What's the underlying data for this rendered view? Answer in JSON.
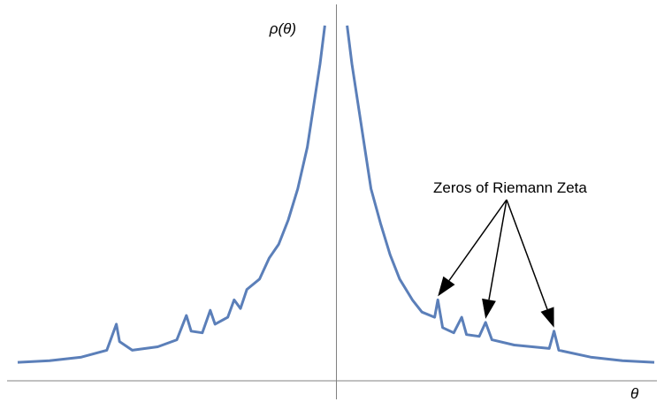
{
  "chart_data": {
    "type": "line",
    "title": "",
    "xlabel": "θ",
    "ylabel": "ρ(θ)",
    "grid": false,
    "xlim": [
      -1,
      1
    ],
    "ylim": [
      0,
      1
    ],
    "series": [
      {
        "points_left": [
          [
            -1.0,
            0.02
          ],
          [
            -0.9,
            0.025
          ],
          [
            -0.8,
            0.035
          ],
          [
            -0.72,
            0.055
          ],
          [
            -0.69,
            0.13
          ],
          [
            -0.68,
            0.08
          ],
          [
            -0.64,
            0.055
          ],
          [
            -0.56,
            0.065
          ],
          [
            -0.5,
            0.085
          ],
          [
            -0.47,
            0.155
          ],
          [
            -0.455,
            0.11
          ],
          [
            -0.42,
            0.105
          ],
          [
            -0.395,
            0.17
          ],
          [
            -0.38,
            0.13
          ],
          [
            -0.34,
            0.15
          ],
          [
            -0.32,
            0.2
          ],
          [
            -0.3,
            0.175
          ],
          [
            -0.28,
            0.23
          ],
          [
            -0.24,
            0.26
          ],
          [
            -0.21,
            0.32
          ],
          [
            -0.18,
            0.36
          ],
          [
            -0.15,
            0.43
          ],
          [
            -0.12,
            0.52
          ],
          [
            -0.09,
            0.64
          ],
          [
            -0.07,
            0.76
          ],
          [
            -0.05,
            0.88
          ],
          [
            -0.035,
            0.99
          ]
        ],
        "points_right": [
          [
            0.035,
            0.99
          ],
          [
            0.05,
            0.88
          ],
          [
            0.07,
            0.76
          ],
          [
            0.09,
            0.64
          ],
          [
            0.11,
            0.52
          ],
          [
            0.14,
            0.42
          ],
          [
            0.17,
            0.33
          ],
          [
            0.2,
            0.26
          ],
          [
            0.24,
            0.2
          ],
          [
            0.27,
            0.165
          ],
          [
            0.31,
            0.15
          ],
          [
            0.32,
            0.2
          ],
          [
            0.335,
            0.12
          ],
          [
            0.37,
            0.105
          ],
          [
            0.395,
            0.15
          ],
          [
            0.41,
            0.1
          ],
          [
            0.45,
            0.095
          ],
          [
            0.47,
            0.135
          ],
          [
            0.49,
            0.085
          ],
          [
            0.56,
            0.07
          ],
          [
            0.67,
            0.06
          ],
          [
            0.685,
            0.11
          ],
          [
            0.7,
            0.055
          ],
          [
            0.8,
            0.035
          ],
          [
            0.9,
            0.025
          ],
          [
            1.0,
            0.02
          ]
        ]
      }
    ],
    "annotations": [
      {
        "text": "Zeros of Riemann Zeta",
        "arrow_targets": [
          [
            0.32,
            0.2
          ],
          [
            0.47,
            0.135
          ],
          [
            0.685,
            0.11
          ]
        ]
      }
    ],
    "colors": {
      "series": "#5b7fb9",
      "axis": "#808080",
      "arrow": "#000000"
    }
  }
}
